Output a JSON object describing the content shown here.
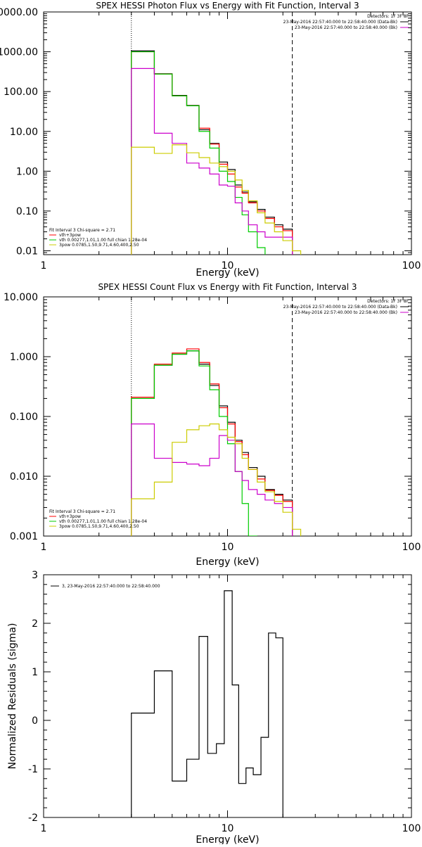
{
  "chart_data": [
    {
      "type": "line",
      "title": "SPEX HESSI Photon Flux vs Energy with Fit Function, Interval 3",
      "xlabel": "Energy (keV)",
      "xscale": "log",
      "yscale": "log",
      "xlim": [
        1,
        100
      ],
      "ylim": [
        0.008,
        10000
      ],
      "xticks": [
        "1",
        "10",
        "100"
      ],
      "yticks": [
        "0.01",
        "0.10",
        "1.00",
        "10.00",
        "100.00",
        "1000.00",
        "10000.00"
      ],
      "vlines": [
        {
          "x": 3.0,
          "style": "dotted"
        },
        {
          "x": 22.5,
          "style": "dashed"
        }
      ],
      "legend_top_right": {
        "header": "Detectors: 1F 3F 8F",
        "entries": [
          {
            "label": "23-May-2016 22:57:40.000 to 22:58:40.000 (Data-Bk)",
            "color": "#000000"
          },
          {
            "label": "23-May-2016 22:57:40.000 to 22:58:40.000 (Bk)",
            "color": "#cc00cc"
          }
        ]
      },
      "legend_bottom_left": {
        "header": "Fit Interval 3   Chi-square = 2.71",
        "entries": [
          {
            "label": "vth+3pow",
            "color": "#ff0000"
          },
          {
            "label": "vth 0.00277,1.01,1.00  full chian 1.28e-04",
            "color": "#00cc00"
          },
          {
            "label": "3pow 0.0785,1.50,9.71,4.60,400,2.50",
            "color": "#cccc00"
          }
        ]
      },
      "bin_edges": [
        3.0,
        4.0,
        5.0,
        6.0,
        7.0,
        8.0,
        9.0,
        10.0,
        11.0,
        12.0,
        13.0,
        14.5,
        16.0,
        18.0,
        20.0,
        22.5,
        25.0
      ],
      "series": [
        {
          "color": "#000000",
          "values": [
            1050,
            280,
            80,
            45,
            11,
            5,
            1.7,
            1.1,
            0.45,
            0.3,
            0.17,
            0.11,
            0.07,
            0.045,
            0.035,
            null
          ]
        },
        {
          "color": "#ff0000",
          "values": [
            1000,
            275,
            78,
            44,
            12,
            4.8,
            1.5,
            0.85,
            0.4,
            0.28,
            0.16,
            0.1,
            0.065,
            0.04,
            0.032,
            null
          ]
        },
        {
          "color": "#00cc00",
          "values": [
            1000,
            275,
            78,
            44,
            10,
            3.8,
            1.0,
            0.55,
            0.22,
            0.08,
            0.03,
            0.012,
            null,
            null,
            null,
            null
          ]
        },
        {
          "color": "#cc00cc",
          "values": [
            380,
            9,
            5,
            1.6,
            1.2,
            0.85,
            0.45,
            0.42,
            0.16,
            0.1,
            0.045,
            0.03,
            0.022,
            0.022,
            0.022,
            null
          ]
        },
        {
          "color": "#cccc00",
          "values": [
            4,
            2.8,
            4.6,
            2.9,
            2.2,
            1.6,
            1.3,
            1.0,
            0.6,
            0.33,
            0.18,
            0.09,
            0.05,
            0.03,
            0.018,
            0.01
          ]
        }
      ]
    },
    {
      "type": "line",
      "title": "SPEX HESSI Count Flux vs Energy with Fit Function, Interval 3",
      "xlabel": "Energy (keV)",
      "xscale": "log",
      "yscale": "log",
      "xlim": [
        1,
        100
      ],
      "ylim": [
        0.001,
        10
      ],
      "xticks": [
        "1",
        "10",
        "100"
      ],
      "yticks": [
        "0.001",
        "0.010",
        "0.100",
        "1.000",
        "10.000"
      ],
      "vlines": [
        {
          "x": 3.0,
          "style": "dotted"
        },
        {
          "x": 22.5,
          "style": "dashed"
        }
      ],
      "legend_top_right": {
        "header": "Detectors: 1F 3F 8F",
        "entries": [
          {
            "label": "23-May-2016 22:57:40.000 to 22:58:40.000 (Data-Bk)",
            "color": "#000000"
          },
          {
            "label": "23-May-2016 22:57:40.000 to 22:58:40.000 (Bk)",
            "color": "#cc00cc"
          }
        ]
      },
      "legend_bottom_left": {
        "header": "Fit Interval 3   Chi-square = 2.71",
        "entries": [
          {
            "label": "vth+3pow",
            "color": "#ff0000"
          },
          {
            "label": "vth 0.00277,1.01,1.00  full chian 1.28e-04",
            "color": "#00cc00"
          },
          {
            "label": "3pow 0.0785,1.50,9.71,4.60,400,2.50",
            "color": "#cccc00"
          }
        ]
      },
      "bin_edges": [
        3.0,
        4.0,
        5.0,
        6.0,
        7.0,
        8.0,
        9.0,
        10.0,
        11.0,
        12.0,
        13.0,
        14.5,
        16.0,
        18.0,
        20.0,
        22.5,
        25.0
      ],
      "series": [
        {
          "color": "#000000",
          "values": [
            0.2,
            0.72,
            1.1,
            1.25,
            0.75,
            0.33,
            0.15,
            0.08,
            0.04,
            0.025,
            0.014,
            0.01,
            0.006,
            0.005,
            0.004,
            null
          ]
        },
        {
          "color": "#ff0000",
          "values": [
            0.21,
            0.75,
            1.15,
            1.35,
            0.8,
            0.35,
            0.14,
            0.075,
            0.038,
            0.023,
            0.013,
            0.009,
            0.0058,
            0.0048,
            0.0038,
            null
          ]
        },
        {
          "color": "#00cc00",
          "values": [
            0.2,
            0.72,
            1.1,
            1.25,
            0.7,
            0.28,
            0.1,
            0.035,
            0.012,
            0.0035,
            0.001,
            null,
            null,
            null,
            null,
            null
          ]
        },
        {
          "color": "#cc00cc",
          "values": [
            0.075,
            0.02,
            0.017,
            0.016,
            0.015,
            0.02,
            0.048,
            0.04,
            0.012,
            0.0085,
            0.006,
            0.005,
            0.004,
            0.0035,
            0.003,
            null
          ]
        },
        {
          "color": "#cccc00",
          "values": [
            0.0042,
            0.008,
            0.037,
            0.06,
            0.07,
            0.075,
            0.06,
            0.045,
            0.035,
            0.02,
            0.013,
            0.008,
            0.0055,
            0.0038,
            0.0025,
            0.0013
          ]
        }
      ]
    },
    {
      "type": "line",
      "title": "",
      "xlabel": "Energy (keV)",
      "ylabel": "Normalized Residuals (sigma)",
      "xscale": "log",
      "yscale": "linear",
      "xlim": [
        1,
        100
      ],
      "ylim": [
        -2,
        3
      ],
      "xticks": [
        "1",
        "10",
        "100"
      ],
      "yticks": [
        "-2",
        "-1",
        "0",
        "1",
        "2",
        "3"
      ],
      "legend_top_left": {
        "entries": [
          {
            "label": "3, 23-May-2016 22:57:40.000 to 22:58:40.000",
            "color": "#000000"
          }
        ]
      },
      "bin_edges": [
        3.0,
        4.0,
        5.0,
        6.0,
        7.0,
        7.8,
        8.7,
        9.6,
        10.6,
        11.5,
        12.6,
        13.8,
        15.2,
        16.7,
        18.3,
        20.0,
        22.5
      ],
      "series": [
        {
          "color": "#000000",
          "values": [
            0.15,
            1.02,
            -1.25,
            -0.8,
            1.73,
            -0.68,
            -0.48,
            2.67,
            0.73,
            -1.3,
            -0.98,
            -1.12,
            -0.35,
            1.8,
            1.7,
            null
          ]
        }
      ]
    }
  ]
}
